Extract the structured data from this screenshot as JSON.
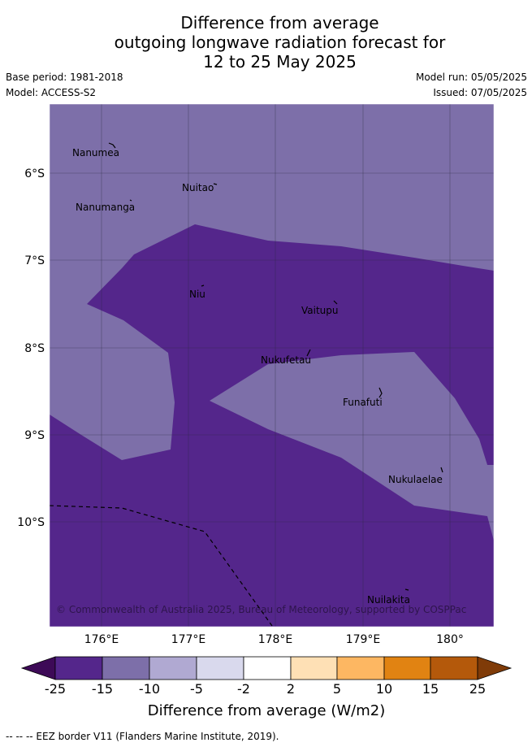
{
  "header": {
    "title_lines": [
      "Difference from average",
      "outgoing longwave radiation forecast for",
      "12 to 25 May 2025"
    ],
    "base_period": "Base period: 1981-2018",
    "model": "Model: ACCESS-S2",
    "model_run": "Model run: 05/05/2025",
    "issued": "Issued: 07/05/2025"
  },
  "map": {
    "copyright": "© Commonwealth of Australia 2025, Bureau of Meteorology, supported by COSPPac",
    "lat_ticks": [
      "6°S",
      "7°S",
      "8°S",
      "9°S",
      "10°S"
    ],
    "lon_ticks": [
      "176°E",
      "177°E",
      "178°E",
      "179°E",
      "180°"
    ],
    "islands": [
      "Nanumea",
      "Nuitao",
      "Nanumanga",
      "Niu",
      "Vaitupu",
      "Nukufetau",
      "Funafuti",
      "Nukulaelae",
      "Nuilakita"
    ],
    "fill_colors": {
      "class_-15_-25": "#54268b",
      "class_-10_-15": "#7d6fa9"
    }
  },
  "colorbar": {
    "ticks": [
      "-25",
      "-15",
      "-10",
      "-5",
      "-2",
      "2",
      "5",
      "10",
      "15",
      "25"
    ],
    "colors": [
      "#3d0a57",
      "#54268b",
      "#7d6fa9",
      "#b0a9d2",
      "#d9d9ed",
      "#ffffff",
      "#fee0b5",
      "#fdb762",
      "#e18312",
      "#b4590b",
      "#7f3b08"
    ],
    "label": "Difference from average (W/m2)"
  },
  "footer": {
    "eez_note": "--  --  -- EEZ border V11 (Flanders Marine Institute, 2019)."
  }
}
